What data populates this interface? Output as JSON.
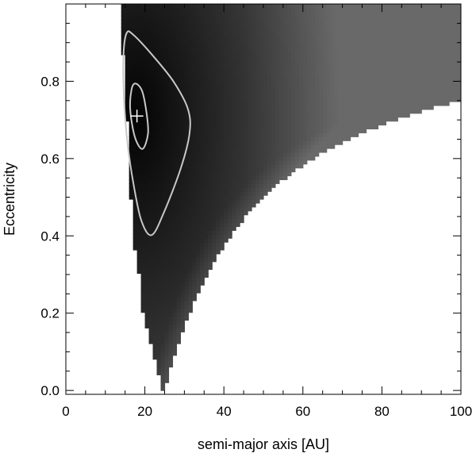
{
  "chart_data": {
    "type": "heatmap",
    "title": "",
    "xlabel": "semi-major axis [AU]",
    "ylabel": "Eccentricity",
    "xlim": [
      0,
      100
    ],
    "ylim": [
      -0.01,
      1.0
    ],
    "x_ticks": [
      0,
      20,
      40,
      60,
      80,
      100
    ],
    "x_tick_labels": [
      "0",
      "20",
      "40",
      "60",
      "80",
      "100"
    ],
    "y_ticks": [
      0.0,
      0.2,
      0.4,
      0.6,
      0.8
    ],
    "y_tick_labels": [
      "0.0",
      "0.2",
      "0.4",
      "0.6",
      "0.8"
    ],
    "x_minor_step": 5,
    "y_minor_step": 0.05,
    "grid": false,
    "colormap": "grayscale, black = high probability, white = excluded",
    "allowed_region": {
      "description": "shaded region bounded by a ≥ a_min(e) and a*(1-e) ≤ ~25 AU",
      "a_min_vs_e": [
        [
          0.0,
          24.5
        ],
        [
          0.1,
          22.0
        ],
        [
          0.2,
          19.5
        ],
        [
          0.3,
          18.5
        ],
        [
          0.4,
          17.0
        ],
        [
          0.6,
          16.0
        ],
        [
          0.8,
          15.0
        ],
        [
          1.0,
          13.5
        ]
      ],
      "periastron_limit_au": 25
    },
    "contours": [
      {
        "level": "inner",
        "points": [
          [
            17.6,
            0.794
          ],
          [
            19.3,
            0.775
          ],
          [
            20.4,
            0.72
          ],
          [
            20.8,
            0.665
          ],
          [
            19.4,
            0.625
          ],
          [
            17.5,
            0.655
          ],
          [
            16.3,
            0.725
          ],
          [
            16.6,
            0.777
          ]
        ]
      },
      {
        "level": "outer",
        "points": [
          [
            15.4,
            0.925
          ],
          [
            17.1,
            0.92
          ],
          [
            21.7,
            0.87
          ],
          [
            27.2,
            0.8
          ],
          [
            30.9,
            0.728
          ],
          [
            31.3,
            0.665
          ],
          [
            29.1,
            0.575
          ],
          [
            24.8,
            0.46
          ],
          [
            21.7,
            0.402
          ],
          [
            19.1,
            0.44
          ],
          [
            17.1,
            0.535
          ],
          [
            15.6,
            0.64
          ],
          [
            14.7,
            0.76
          ],
          [
            14.6,
            0.87
          ]
        ]
      }
    ],
    "best_fit": {
      "a": 18.0,
      "e": 0.71,
      "marker": "+"
    },
    "colors": {
      "contour": "#c8c8c8",
      "marker": "#ffffff",
      "axis": "#000000",
      "background": "#ffffff"
    }
  }
}
